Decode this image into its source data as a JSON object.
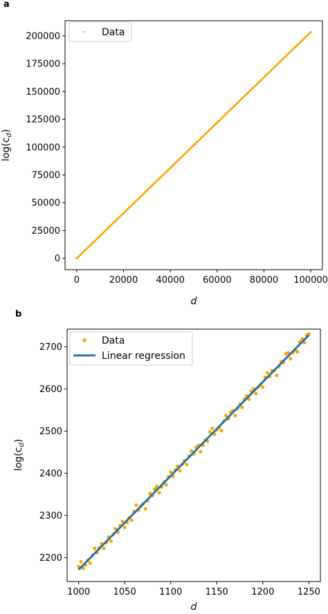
{
  "chart_data": [
    {
      "panel_label": "a",
      "type": "scatter",
      "xlabel": "d",
      "ylabel_main": "log(c",
      "ylabel_sub": "d",
      "ylabel_close": ")",
      "xlim": [
        -4999,
        104999
      ],
      "ylim": [
        -10172,
        213629
      ],
      "xticks": [
        0,
        20000,
        40000,
        60000,
        80000,
        100000
      ],
      "xtick_labels": [
        "0",
        "20000",
        "40000",
        "60000",
        "80000",
        "100000"
      ],
      "yticks": [
        0,
        25000,
        50000,
        75000,
        100000,
        125000,
        150000,
        175000,
        200000
      ],
      "ytick_labels": [
        "0",
        "25000",
        "50000",
        "75000",
        "100000",
        "125000",
        "150000",
        "175000",
        "200000"
      ],
      "grid": false,
      "legend_position": "upper-left",
      "series": [
        {
          "name": "Data",
          "marker": "point",
          "color": "#ffa500",
          "x_range": [
            0,
            100000
          ],
          "y_range": [
            0,
            203457
          ],
          "n_points": 200
        }
      ]
    },
    {
      "panel_label": "b",
      "type": "scatter",
      "xlabel": "d",
      "ylabel_main": "log(c",
      "ylabel_sub": "d",
      "ylabel_close": ")",
      "xlim": [
        987.5,
        1262.5
      ],
      "ylim": [
        2143,
        2742
      ],
      "xticks": [
        1000,
        1050,
        1100,
        1150,
        1200,
        1250
      ],
      "xtick_labels": [
        "1000",
        "1050",
        "1100",
        "1150",
        "1200",
        "1250"
      ],
      "yticks": [
        2200,
        2300,
        2400,
        2500,
        2600,
        2700
      ],
      "ytick_labels": [
        "2200",
        "2300",
        "2400",
        "2500",
        "2600",
        "2700"
      ],
      "grid": false,
      "legend_position": "upper-left",
      "series": [
        {
          "name": "Data",
          "marker": "dot",
          "color": "#ffa500",
          "x_range": [
            1000,
            1250
          ],
          "points_model": {
            "slope": 2.226,
            "intercept": -55.5,
            "step": 2.5,
            "pattern": "oscillating"
          }
        },
        {
          "name": "Linear regression",
          "type": "line",
          "color": "#1f77b4",
          "x": [
            1000,
            1250
          ],
          "y": [
            2171,
            2728
          ]
        }
      ]
    }
  ]
}
